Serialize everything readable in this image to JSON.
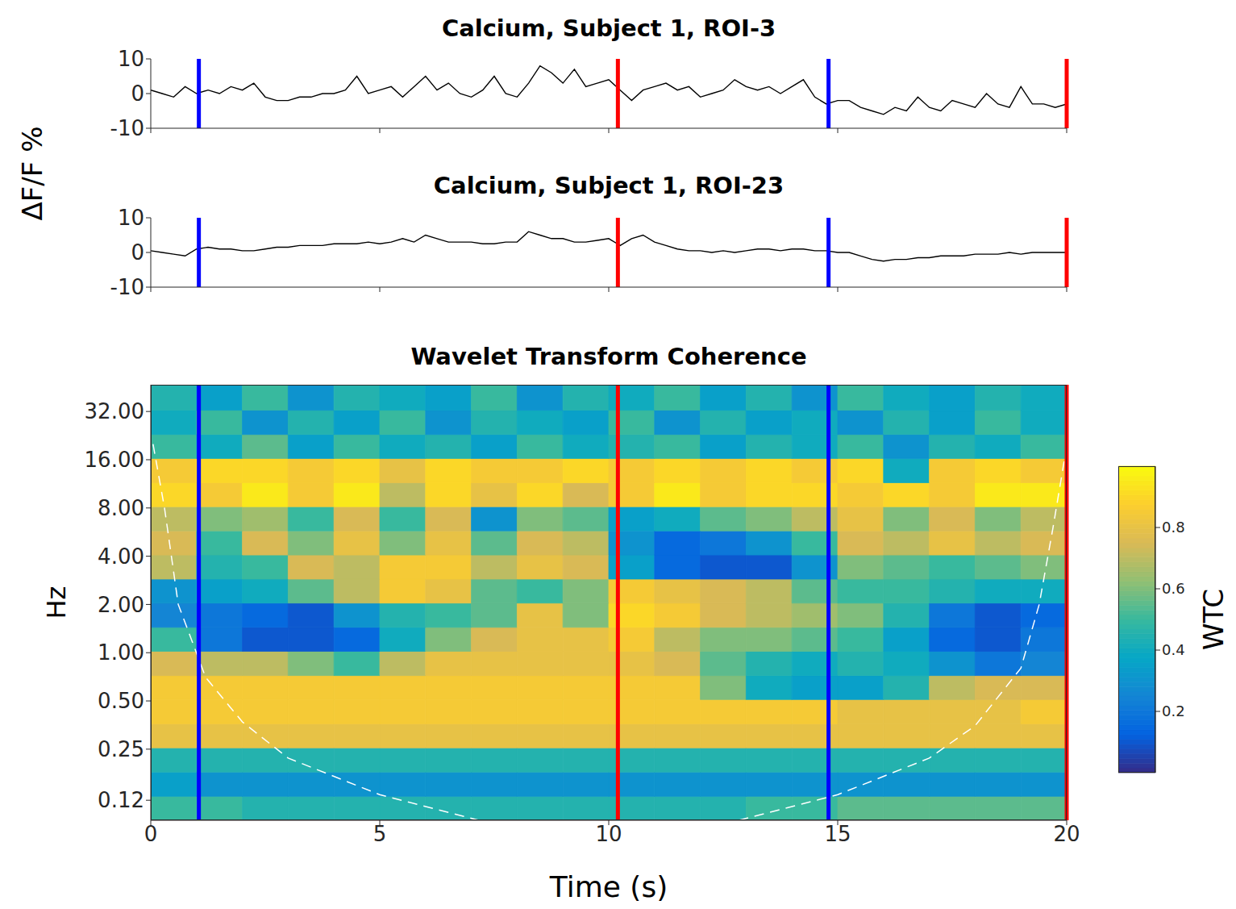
{
  "chart_data": [
    {
      "type": "line",
      "title": "Calcium, Subject 1, ROI-3",
      "ylabel": "ΔF/F %",
      "xlim": [
        0,
        20
      ],
      "xticks": [
        0,
        5,
        10,
        15,
        20
      ],
      "ylim": [
        -10,
        10
      ],
      "yticks": [
        -10,
        0,
        10
      ],
      "tick_labels": "y",
      "color": "#000000",
      "x": [
        0,
        0.25,
        0.5,
        0.75,
        1,
        1.25,
        1.5,
        1.75,
        2,
        2.25,
        2.5,
        2.75,
        3,
        3.25,
        3.5,
        3.75,
        4,
        4.25,
        4.5,
        4.75,
        5,
        5.25,
        5.5,
        5.75,
        6,
        6.25,
        6.5,
        6.75,
        7,
        7.25,
        7.5,
        7.75,
        8,
        8.25,
        8.5,
        8.75,
        9,
        9.25,
        9.5,
        9.75,
        10,
        10.25,
        10.5,
        10.75,
        11,
        11.25,
        11.5,
        11.75,
        12,
        12.25,
        12.5,
        12.75,
        13,
        13.25,
        13.5,
        13.75,
        14,
        14.25,
        14.5,
        14.75,
        15,
        15.25,
        15.5,
        15.75,
        16,
        16.25,
        16.5,
        16.75,
        17,
        17.25,
        17.5,
        17.75,
        18,
        18.25,
        18.5,
        18.75,
        19,
        19.25,
        19.5,
        19.75,
        20
      ],
      "values": [
        1,
        0,
        -1,
        2,
        0,
        1,
        0,
        2,
        1,
        3,
        -1,
        -2,
        -2,
        -1,
        -1,
        0,
        0,
        1,
        5,
        0,
        1,
        2,
        -1,
        2,
        5,
        1,
        3,
        0,
        -1,
        1,
        5,
        0,
        -1,
        3,
        8,
        6,
        3,
        7,
        2,
        3,
        4,
        1,
        -2,
        1,
        2,
        3,
        1,
        2,
        -1,
        0,
        1,
        4,
        2,
        1,
        2,
        0,
        2,
        4,
        -1,
        -3,
        -2,
        -2,
        -4,
        -5,
        -6,
        -4,
        -5,
        -1,
        -4,
        -5,
        -2,
        -3,
        -4,
        0,
        -3,
        -4,
        2,
        -3,
        -3,
        -4,
        -3
      ],
      "vlines": [
        {
          "x": 1.05,
          "color": "#0000ff"
        },
        {
          "x": 10.2,
          "color": "#ff0000"
        },
        {
          "x": 14.8,
          "color": "#0000ff"
        },
        {
          "x": 20,
          "color": "#ff0000"
        }
      ]
    },
    {
      "type": "line",
      "title": "Calcium, Subject 1, ROI-23",
      "xlim": [
        0,
        20
      ],
      "xticks": [
        0,
        5,
        10,
        15,
        20
      ],
      "ylim": [
        -10,
        10
      ],
      "yticks": [
        -10,
        0,
        10
      ],
      "tick_labels": "y",
      "color": "#000000",
      "x": [
        0,
        0.25,
        0.5,
        0.75,
        1,
        1.25,
        1.5,
        1.75,
        2,
        2.25,
        2.5,
        2.75,
        3,
        3.25,
        3.5,
        3.75,
        4,
        4.25,
        4.5,
        4.75,
        5,
        5.25,
        5.5,
        5.75,
        6,
        6.25,
        6.5,
        6.75,
        7,
        7.25,
        7.5,
        7.75,
        8,
        8.25,
        8.5,
        8.75,
        9,
        9.25,
        9.5,
        9.75,
        10,
        10.25,
        10.5,
        10.75,
        11,
        11.25,
        11.5,
        11.75,
        12,
        12.25,
        12.5,
        12.75,
        13,
        13.25,
        13.5,
        13.75,
        14,
        14.25,
        14.5,
        14.75,
        15,
        15.25,
        15.5,
        15.75,
        16,
        16.25,
        16.5,
        16.75,
        17,
        17.25,
        17.5,
        17.75,
        18,
        18.25,
        18.5,
        18.75,
        19,
        19.25,
        19.5,
        19.75,
        20
      ],
      "values": [
        0.5,
        0,
        -0.5,
        -1,
        1,
        1.5,
        1,
        1,
        0.5,
        0.5,
        1,
        1.5,
        1.5,
        2,
        2,
        2,
        2.5,
        2.5,
        2.5,
        3,
        2.5,
        3,
        4,
        3,
        5,
        4,
        3,
        3,
        3,
        2.5,
        2.5,
        3,
        3,
        6,
        5,
        4,
        4,
        3,
        3,
        3.5,
        4,
        2,
        4,
        5,
        3,
        2,
        1,
        0.5,
        0.5,
        0,
        0.5,
        0,
        0.5,
        1,
        1,
        0.5,
        1,
        1,
        0.5,
        0.5,
        0,
        0,
        -1,
        -2,
        -2.5,
        -2,
        -2,
        -1.5,
        -1.5,
        -1,
        -1,
        -1,
        -0.5,
        -0.5,
        -0.5,
        0,
        -0.5,
        0,
        0,
        0,
        0
      ],
      "vlines": [
        {
          "x": 1.05,
          "color": "#0000ff"
        },
        {
          "x": 10.2,
          "color": "#ff0000"
        },
        {
          "x": 14.8,
          "color": "#0000ff"
        },
        {
          "x": 20,
          "color": "#ff0000"
        }
      ]
    },
    {
      "type": "heatmap",
      "title": "Wavelet Transform Coherence",
      "xlabel": "Time (s)",
      "ylabel": "Hz",
      "log": "y",
      "xlim": [
        0,
        20
      ],
      "xticks": [
        0,
        5,
        10,
        15,
        20
      ],
      "ylim": [
        0.09,
        47
      ],
      "yticks": [
        {
          "value": 0.12,
          "label": "0.12"
        },
        {
          "value": 0.25,
          "label": "0.25"
        },
        {
          "value": 0.5,
          "label": "0.50"
        },
        {
          "value": 1,
          "label": "1.00"
        },
        {
          "value": 2,
          "label": "2.00"
        },
        {
          "value": 4,
          "label": "4.00"
        },
        {
          "value": 8,
          "label": "8.00"
        },
        {
          "value": 16,
          "label": "16.00"
        },
        {
          "value": 32,
          "label": "32.00"
        }
      ],
      "x_edges": [
        0,
        1,
        2,
        3,
        4,
        5,
        6,
        7,
        8,
        9,
        10,
        11,
        12,
        13,
        14,
        15,
        16,
        17,
        18,
        19,
        20
      ],
      "y_edges": [
        0.09,
        0.127,
        0.18,
        0.255,
        0.36,
        0.51,
        0.72,
        1.02,
        1.44,
        2.04,
        2.88,
        4.07,
        5.76,
        8.15,
        11.5,
        16.3,
        23,
        32.6,
        47
      ],
      "cells": [
        [
          0.5,
          0.5,
          0.45,
          0.45,
          0.45,
          0.45,
          0.45,
          0.45,
          0.45,
          0.45,
          0.45,
          0.45,
          0.45,
          0.5,
          0.5,
          0.55,
          0.55,
          0.55,
          0.55,
          0.55
        ],
        [
          0.35,
          0.3,
          0.3,
          0.3,
          0.3,
          0.3,
          0.3,
          0.3,
          0.3,
          0.3,
          0.3,
          0.3,
          0.3,
          0.3,
          0.3,
          0.3,
          0.3,
          0.3,
          0.3,
          0.3
        ],
        [
          0.45,
          0.45,
          0.45,
          0.45,
          0.45,
          0.45,
          0.45,
          0.45,
          0.45,
          0.45,
          0.45,
          0.45,
          0.45,
          0.45,
          0.45,
          0.45,
          0.45,
          0.45,
          0.45,
          0.45
        ],
        [
          0.8,
          0.8,
          0.8,
          0.8,
          0.8,
          0.8,
          0.8,
          0.8,
          0.8,
          0.8,
          0.8,
          0.8,
          0.8,
          0.8,
          0.8,
          0.8,
          0.8,
          0.8,
          0.8,
          0.8
        ],
        [
          0.85,
          0.85,
          0.85,
          0.85,
          0.85,
          0.85,
          0.85,
          0.85,
          0.85,
          0.85,
          0.85,
          0.85,
          0.85,
          0.85,
          0.85,
          0.8,
          0.8,
          0.8,
          0.8,
          0.85
        ],
        [
          0.85,
          0.85,
          0.85,
          0.85,
          0.85,
          0.85,
          0.85,
          0.85,
          0.85,
          0.85,
          0.85,
          0.85,
          0.6,
          0.4,
          0.35,
          0.35,
          0.45,
          0.7,
          0.75,
          0.75
        ],
        [
          0.75,
          0.7,
          0.7,
          0.6,
          0.5,
          0.7,
          0.8,
          0.8,
          0.8,
          0.8,
          0.8,
          0.75,
          0.55,
          0.45,
          0.4,
          0.45,
          0.4,
          0.3,
          0.2,
          0.25
        ],
        [
          0.5,
          0.2,
          0.1,
          0.1,
          0.15,
          0.4,
          0.6,
          0.75,
          0.8,
          0.8,
          0.85,
          0.7,
          0.6,
          0.6,
          0.55,
          0.5,
          0.35,
          0.15,
          0.1,
          0.2
        ],
        [
          0.25,
          0.2,
          0.15,
          0.1,
          0.3,
          0.45,
          0.5,
          0.55,
          0.8,
          0.6,
          0.9,
          0.85,
          0.75,
          0.7,
          0.65,
          0.6,
          0.45,
          0.2,
          0.1,
          0.15
        ],
        [
          0.3,
          0.35,
          0.4,
          0.55,
          0.7,
          0.85,
          0.8,
          0.55,
          0.5,
          0.6,
          0.85,
          0.8,
          0.75,
          0.7,
          0.55,
          0.5,
          0.5,
          0.45,
          0.4,
          0.4
        ],
        [
          0.7,
          0.45,
          0.5,
          0.75,
          0.7,
          0.85,
          0.85,
          0.7,
          0.8,
          0.75,
          0.35,
          0.15,
          0.1,
          0.1,
          0.3,
          0.6,
          0.55,
          0.5,
          0.55,
          0.6
        ],
        [
          0.75,
          0.5,
          0.75,
          0.6,
          0.8,
          0.6,
          0.8,
          0.55,
          0.75,
          0.7,
          0.3,
          0.15,
          0.2,
          0.3,
          0.5,
          0.75,
          0.7,
          0.8,
          0.7,
          0.75
        ],
        [
          0.7,
          0.6,
          0.65,
          0.5,
          0.75,
          0.5,
          0.75,
          0.3,
          0.6,
          0.55,
          0.35,
          0.4,
          0.55,
          0.6,
          0.7,
          0.8,
          0.6,
          0.75,
          0.6,
          0.7
        ],
        [
          0.9,
          0.85,
          0.95,
          0.85,
          0.95,
          0.7,
          0.9,
          0.8,
          0.9,
          0.75,
          0.85,
          0.95,
          0.85,
          0.9,
          0.9,
          0.85,
          0.9,
          0.85,
          0.95,
          0.95
        ],
        [
          0.85,
          0.9,
          0.9,
          0.85,
          0.9,
          0.8,
          0.9,
          0.85,
          0.85,
          0.9,
          0.85,
          0.9,
          0.85,
          0.9,
          0.85,
          0.9,
          0.4,
          0.85,
          0.9,
          0.85
        ],
        [
          0.5,
          0.4,
          0.55,
          0.35,
          0.5,
          0.4,
          0.45,
          0.35,
          0.5,
          0.4,
          0.45,
          0.5,
          0.35,
          0.45,
          0.4,
          0.5,
          0.3,
          0.45,
          0.4,
          0.5
        ],
        [
          0.4,
          0.5,
          0.3,
          0.45,
          0.35,
          0.5,
          0.3,
          0.45,
          0.4,
          0.35,
          0.5,
          0.3,
          0.45,
          0.35,
          0.4,
          0.3,
          0.45,
          0.35,
          0.5,
          0.4
        ],
        [
          0.45,
          0.35,
          0.5,
          0.3,
          0.45,
          0.4,
          0.35,
          0.5,
          0.3,
          0.45,
          0.4,
          0.5,
          0.35,
          0.45,
          0.3,
          0.5,
          0.4,
          0.35,
          0.45,
          0.4
        ]
      ],
      "coi": {
        "x": [
          0.05,
          0.3,
          0.6,
          1.2,
          2,
          3,
          5,
          7.5,
          10,
          12.5,
          15,
          17,
          18,
          19,
          19.4,
          19.7,
          19.95
        ],
        "y": [
          20,
          8,
          2,
          0.7,
          0.37,
          0.22,
          0.13,
          0.085,
          null,
          0.085,
          0.13,
          0.22,
          0.35,
          0.8,
          2,
          6,
          16
        ],
        "color": "#ffffff",
        "line_style": "dashed"
      },
      "vlines": [
        {
          "x": 1.05,
          "color": "#0000ff"
        },
        {
          "x": 10.2,
          "color": "#ff0000"
        },
        {
          "x": 14.8,
          "color": "#0000ff"
        },
        {
          "x": 20,
          "color": "#ff0000"
        }
      ],
      "colorbar": {
        "lim": [
          0,
          1
        ],
        "ticks": [
          0.2,
          0.4,
          0.6,
          0.8
        ],
        "label": "WTC"
      }
    }
  ]
}
